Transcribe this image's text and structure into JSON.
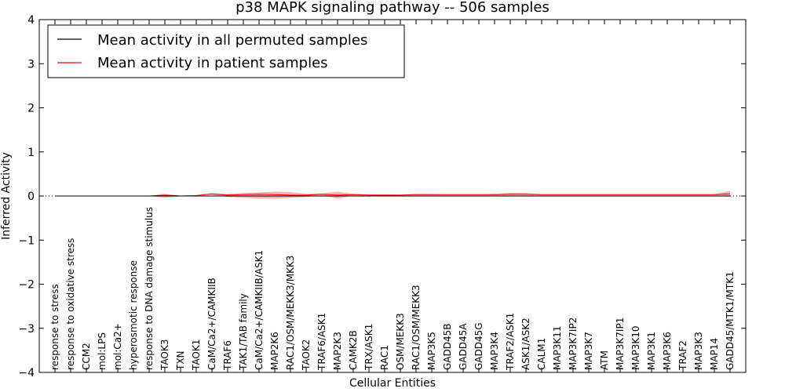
{
  "chart_data": {
    "type": "line",
    "title": "p38 MAPK signaling pathway -- 506 samples",
    "xlabel": "Cellular Entities",
    "ylabel": "Inferred Activity",
    "ylim": [
      -4,
      4
    ],
    "yticks": [
      {
        "value": 4,
        "label": "4"
      },
      {
        "value": 3,
        "label": "3"
      },
      {
        "value": 2,
        "label": "2"
      },
      {
        "value": 1,
        "label": "1"
      },
      {
        "value": 0,
        "label": "0"
      },
      {
        "value": -1,
        "label": "−1"
      },
      {
        "value": -2,
        "label": "−2"
      },
      {
        "value": -3,
        "label": "−3"
      },
      {
        "value": -4,
        "label": "−4"
      }
    ],
    "categories": [
      "response to stress",
      "response to oxidative stress",
      "CCM2",
      "mol:LPS",
      "mol:Ca2+",
      "hyperosmotic response",
      "response to DNA damage stimulus",
      "TAOK3",
      "TXN",
      "TAOK1",
      "CaM/Ca2+/CAMKIIB",
      "TRAF6",
      "TAK1/TAB family",
      "CaM/Ca2+/CAMKIIB/ASK1",
      "MAP2K6",
      "RAC1/OSM/MEKK3/MKK3",
      "TAOK2",
      "TRAF6/ASK1",
      "MAP2K3",
      "CAMK2B",
      "TRX/ASK1",
      "RAC1",
      "OSM/MEKK3",
      "RAC1/OSM/MEKK3",
      "MAP3K5",
      "GADD45B",
      "GADD45A",
      "GADD45G",
      "MAP3K4",
      "TRAF2/ASK1",
      "ASK1/ASK2",
      "CALM1",
      "MAP3K11",
      "MAP3K7IP2",
      "MAP3K7",
      "ATM",
      "MAP3K7IP1",
      "MAP3K10",
      "MAP3K1",
      "MAP3K6",
      "TRAF2",
      "MAP3K3",
      "MAP14",
      "GADD45/MTK1/MTK1"
    ],
    "series": [
      {
        "name": "Mean activity in all permuted samples",
        "color": "#000000",
        "values": [
          0,
          0,
          0,
          0,
          0,
          0,
          0,
          0,
          0,
          0,
          0,
          0,
          0,
          0,
          0,
          0,
          0,
          0,
          0,
          0,
          0,
          0,
          0,
          0,
          0,
          0,
          0,
          0,
          0,
          0,
          0,
          0,
          0,
          0,
          0,
          0,
          0,
          0,
          0,
          0,
          0,
          0,
          0,
          0
        ]
      },
      {
        "name": "Mean activity in patient samples",
        "color": "#ff0000",
        "values": [
          0,
          0,
          0,
          0,
          0,
          0,
          0,
          0.02,
          0,
          0.01,
          0.05,
          0.02,
          0.03,
          0.04,
          0.03,
          0.02,
          0.02,
          0.04,
          0.02,
          0.03,
          0.02,
          0.02,
          0.02,
          0.03,
          0.03,
          0.03,
          0.03,
          0.03,
          0.03,
          0.04,
          0.04,
          0.03,
          0.03,
          0.03,
          0.03,
          0.03,
          0.03,
          0.03,
          0.03,
          0.03,
          0.03,
          0.03,
          0.03,
          0.05
        ],
        "band_upper": [
          0,
          0,
          0,
          0,
          0,
          0,
          0,
          0.05,
          0.01,
          0.02,
          0.06,
          0.05,
          0.07,
          0.08,
          0.1,
          0.09,
          0.05,
          0.06,
          0.1,
          0.05,
          0.04,
          0.04,
          0.03,
          0.05,
          0.05,
          0.04,
          0.04,
          0.04,
          0.05,
          0.07,
          0.07,
          0.04,
          0.04,
          0.04,
          0.04,
          0.04,
          0.04,
          0.04,
          0.04,
          0.04,
          0.04,
          0.04,
          0.04,
          0.12
        ],
        "band_lower": [
          0,
          0,
          0,
          0,
          0,
          0,
          0,
          -0.04,
          -0.01,
          0,
          0.02,
          -0.02,
          -0.04,
          -0.06,
          -0.06,
          -0.04,
          -0.02,
          0.01,
          -0.06,
          0.01,
          0,
          0,
          0.01,
          0.01,
          0.01,
          0.01,
          0.01,
          0.01,
          0.01,
          0.01,
          0.01,
          0.01,
          0.01,
          0.01,
          0.01,
          0.01,
          0.01,
          0.01,
          0.01,
          0.01,
          0.01,
          0.01,
          0.01,
          -0.02
        ]
      }
    ],
    "zero_line": {
      "style": "dotted"
    },
    "legend": {
      "position": "top-left",
      "entries": [
        {
          "label": "Mean activity in all permuted samples",
          "color": "#000000"
        },
        {
          "label": "Mean activity in patient samples",
          "color": "#ff0000"
        }
      ]
    }
  }
}
